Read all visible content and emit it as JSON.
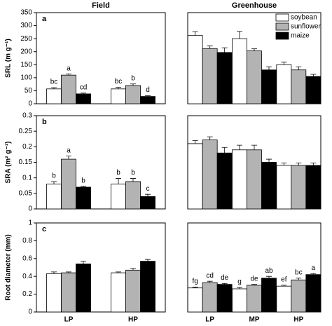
{
  "legend": [
    {
      "name": "soybean",
      "color": "#ffffff"
    },
    {
      "name": "sunflower",
      "color": "#b3b3b3"
    },
    {
      "name": "maize",
      "color": "#000000"
    }
  ],
  "chart_data": [
    {
      "type": "bar",
      "title": "Field",
      "panel": "a",
      "y_label": "SRL (m g⁻¹)",
      "ylim": [
        0,
        350
      ],
      "yticks": [
        0,
        50,
        100,
        150,
        200,
        250,
        300,
        350
      ],
      "series": [
        {
          "values": [
            57,
            57
          ],
          "errors": [
            5,
            6
          ],
          "letters": [
            "bc",
            "bc"
          ]
        },
        {
          "values": [
            110,
            70
          ],
          "errors": [
            4,
            6
          ],
          "letters": [
            "a",
            "b"
          ]
        },
        {
          "values": [
            38,
            28
          ],
          "errors": [
            3,
            3
          ],
          "letters": [
            "cd",
            "d"
          ]
        }
      ]
    },
    {
      "type": "bar",
      "title": "Greenhouse",
      "ylim": [
        0,
        350
      ],
      "series": [
        {
          "values": [
            262,
            250,
            150
          ],
          "errors": [
            15,
            28,
            10
          ]
        },
        {
          "values": [
            212,
            203,
            130
          ],
          "errors": [
            10,
            8,
            12
          ]
        },
        {
          "values": [
            197,
            130,
            105
          ],
          "errors": [
            18,
            12,
            8
          ]
        }
      ]
    },
    {
      "type": "bar",
      "panel": "b",
      "y_label": "SRA (m² g⁻¹)",
      "ylim": [
        0,
        0.3
      ],
      "yticks": [
        0,
        0.05,
        0.1,
        0.15,
        0.2,
        0.25,
        0.3
      ],
      "series": [
        {
          "values": [
            0.08,
            0.08
          ],
          "errors": [
            0.008,
            0.018
          ],
          "letters": [
            "b",
            "b"
          ]
        },
        {
          "values": [
            0.16,
            0.088
          ],
          "errors": [
            0.01,
            0.01
          ],
          "letters": [
            "a",
            "b"
          ]
        },
        {
          "values": [
            0.07,
            0.04
          ],
          "errors": [
            0.003,
            0.007
          ],
          "letters": [
            "b",
            "c"
          ]
        }
      ]
    },
    {
      "type": "bar",
      "ylim": [
        0,
        0.3
      ],
      "series": [
        {
          "values": [
            0.21,
            0.19,
            0.14
          ],
          "errors": [
            0.01,
            0.015,
            0.008
          ]
        },
        {
          "values": [
            0.222,
            0.19,
            0.14
          ],
          "errors": [
            0.01,
            0.015,
            0.008
          ]
        },
        {
          "values": [
            0.18,
            0.15,
            0.14
          ],
          "errors": [
            0.018,
            0.01,
            0.008
          ]
        }
      ]
    },
    {
      "type": "bar",
      "panel": "c",
      "y_label": "Root diameter (mm)",
      "ylim": [
        0,
        1
      ],
      "yticks": [
        0,
        0.2,
        0.4,
        0.6,
        0.8,
        1
      ],
      "categories": [
        "LP",
        "HP"
      ],
      "series": [
        {
          "values": [
            0.43,
            0.44
          ],
          "errors": [
            0.02,
            0.01
          ]
        },
        {
          "values": [
            0.44,
            0.47
          ],
          "errors": [
            0.01,
            0.02
          ]
        },
        {
          "values": [
            0.54,
            0.57
          ],
          "errors": [
            0.03,
            0.02
          ]
        }
      ]
    },
    {
      "type": "bar",
      "ylim": [
        0,
        1
      ],
      "categories": [
        "LP",
        "MP",
        "HP"
      ],
      "series": [
        {
          "values": [
            0.27,
            0.26,
            0.29
          ],
          "errors": [
            0.01,
            0.015,
            0.01
          ],
          "letters": [
            "fg",
            "g",
            "ef"
          ]
        },
        {
          "values": [
            0.33,
            0.3,
            0.36
          ],
          "errors": [
            0.015,
            0.01,
            0.02
          ],
          "letters": [
            "cd",
            "de",
            "bc"
          ]
        },
        {
          "values": [
            0.31,
            0.38,
            0.42
          ],
          "errors": [
            0.01,
            0.02,
            0.01
          ],
          "letters": [
            "de",
            "ab",
            "a"
          ]
        }
      ]
    }
  ]
}
